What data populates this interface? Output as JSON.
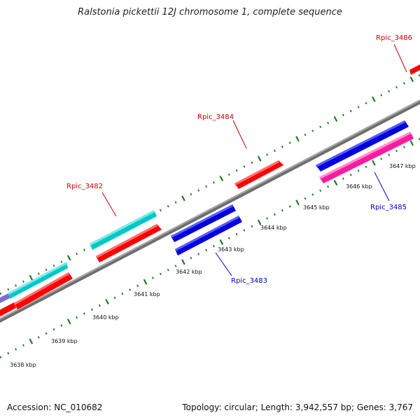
{
  "title": "Ralstonia pickettii 12J chromosome 1, complete sequence",
  "footer": {
    "accession": "Accession: NC_010682",
    "summary": "Topology: circular; Length: 3,942,557 bp; Genes: 3,767"
  },
  "colors": {
    "backbone": "#808080",
    "tick": "#1f7a1f",
    "red_feature": "#ff0000",
    "blue_feature": "#0000dd",
    "cyan_feature": "#00c8c8",
    "magenta_feature": "#ff1aa0",
    "purple_feature": "#7b6fd6",
    "label_red": "#cc0000",
    "label_blue": "#0000cc"
  },
  "scale_labels": [
    {
      "text": "3638 kbp",
      "kbp": 3638
    },
    {
      "text": "3639 kbp",
      "kbp": 3639
    },
    {
      "text": "3640 kbp",
      "kbp": 3640
    },
    {
      "text": "3641 kbp",
      "kbp": 3641
    },
    {
      "text": "3642 kbp",
      "kbp": 3642
    },
    {
      "text": "3643 kbp",
      "kbp": 3643
    },
    {
      "text": "3644 kbp",
      "kbp": 3644
    },
    {
      "text": "3645 kbp",
      "kbp": 3645
    },
    {
      "text": "3646 kbp",
      "kbp": 3646
    },
    {
      "text": "3647 kbp",
      "kbp": 3647
    }
  ],
  "gene_labels": [
    {
      "name": "Rpic_3482",
      "color": "label_red"
    },
    {
      "name": "Rpic_3483",
      "color": "label_blue"
    },
    {
      "name": "Rpic_3484",
      "color": "label_red"
    },
    {
      "name": "Rpic_3485",
      "color": "label_blue"
    },
    {
      "name": "Rpic_3486",
      "color": "label_red"
    }
  ]
}
